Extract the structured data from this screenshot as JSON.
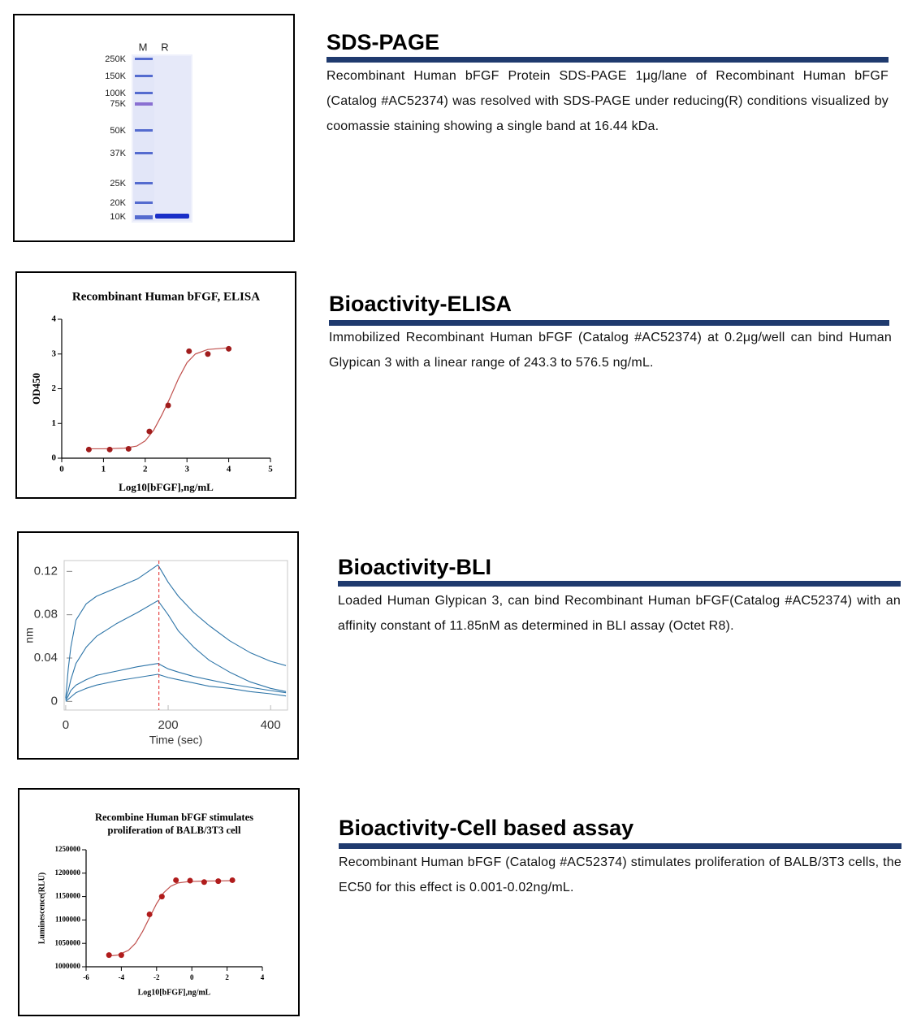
{
  "sections": [
    {
      "title": "SDS-PAGE",
      "description": "Recombinant Human bFGF Protein SDS-PAGE 1μg/lane of Recombinant Human bFGF (Catalog #AC52374) was resolved with SDS-PAGE under reducing(R) conditions visualized by coomassie staining showing a single band at 16.44 kDa.",
      "figure": {
        "type": "gel",
        "lanes": [
          "M",
          "R"
        ],
        "markers": [
          "250K",
          "150K",
          "100K",
          "75K",
          "50K",
          "37K",
          "25K",
          "20K",
          "10K"
        ]
      }
    },
    {
      "title": "Bioactivity-ELISA",
      "description": "Immobilized Recombinant Human bFGF (Catalog #AC52374) at 0.2μg/well can bind Human Glypican 3 with a linear range of 243.3 to 576.5 ng/mL.",
      "chart_data": {
        "type": "scatter",
        "title": [
          "Recombinant Human bFGF, ELISA"
        ],
        "x_label": "Log10[bFGF],ng/mL",
        "y_label": "OD450",
        "x": [
          0.65,
          1.15,
          1.6,
          2.1,
          2.55,
          3.05,
          3.5,
          4.0
        ],
        "values": [
          0.25,
          0.25,
          0.27,
          0.77,
          1.52,
          3.08,
          3.0,
          3.15
        ],
        "fit": {
          "x": [
            0.65,
            1.0,
            1.5,
            1.8,
            2.0,
            2.2,
            2.4,
            2.6,
            2.8,
            3.0,
            3.2,
            3.5,
            4.0
          ],
          "y": [
            0.27,
            0.27,
            0.29,
            0.35,
            0.5,
            0.8,
            1.25,
            1.75,
            2.3,
            2.75,
            3.0,
            3.13,
            3.18
          ]
        },
        "color": "#a01c1c",
        "fit_color": "#c0504d",
        "xlim": [
          0,
          5
        ],
        "xticks": [
          0,
          1,
          2,
          3,
          4,
          5
        ],
        "ylim": [
          0,
          4
        ],
        "yticks": [
          0,
          1,
          2,
          3,
          4
        ]
      }
    },
    {
      "title": "Bioactivity-BLI",
      "description": "Loaded Human Glypican 3, can bind Recombinant Human bFGF(Catalog #AC52374) with an affinity constant of 11.85nM as determined in BLI assay (Octet R8).",
      "chart_data": {
        "type": "line",
        "x_label": "Time (sec)",
        "y_label": "nm",
        "x": [
          0,
          5,
          10,
          20,
          40,
          60,
          100,
          140,
          180,
          200,
          220,
          250,
          280,
          320,
          360,
          400,
          430
        ],
        "series": [
          {
            "color": "#2e75a8",
            "values": [
              0.003,
              0.03,
              0.05,
              0.075,
              0.09,
              0.097,
              0.105,
              0.113,
              0.126,
              0.11,
              0.097,
              0.082,
              0.07,
              0.056,
              0.045,
              0.037,
              0.033
            ]
          },
          {
            "color": "#2e75a8",
            "values": [
              0.002,
              0.01,
              0.02,
              0.035,
              0.05,
              0.06,
              0.072,
              0.082,
              0.093,
              0.08,
              0.065,
              0.05,
              0.038,
              0.027,
              0.018,
              0.012,
              0.009
            ]
          },
          {
            "color": "#2e75a8",
            "values": [
              0.001,
              0.005,
              0.01,
              0.015,
              0.02,
              0.024,
              0.028,
              0.032,
              0.035,
              0.03,
              0.027,
              0.023,
              0.02,
              0.016,
              0.013,
              0.01,
              0.008
            ]
          },
          {
            "color": "#2e75a8",
            "values": [
              0,
              0.002,
              0.004,
              0.008,
              0.012,
              0.015,
              0.019,
              0.022,
              0.025,
              0.022,
              0.02,
              0.017,
              0.014,
              0.012,
              0.009,
              0.007,
              0.005
            ]
          }
        ],
        "dissociation_start": 182,
        "marker_color": "#e02020",
        "xlim": [
          -3,
          433
        ],
        "xticks": [
          0,
          200,
          400
        ],
        "ylim": [
          -0.008,
          0.13
        ],
        "yticks": [
          0,
          0.04,
          0.08,
          0.12
        ]
      }
    },
    {
      "title": "Bioactivity-Cell based assay",
      "description": "Recombinant Human bFGF (Catalog #AC52374) stimulates proliferation of BALB/3T3 cells, the EC50 for this effect is 0.001-0.02ng/mL.",
      "chart_data": {
        "type": "scatter",
        "title": [
          "Recombine Human bFGF stimulates",
          "proliferation of  BALB/3T3 cell"
        ],
        "x_label": "Log10[bFGF],ng/mL",
        "y_label": "Luminescence(RLU)",
        "x": [
          -4.7,
          -4.0,
          -2.4,
          -1.7,
          -0.9,
          -0.1,
          0.7,
          1.5,
          2.3
        ],
        "values": [
          1025000,
          1025000,
          1112000,
          1150000,
          1185000,
          1184000,
          1181000,
          1183000,
          1185000
        ],
        "fit": {
          "x": [
            -4.7,
            -4.2,
            -3.6,
            -3.2,
            -2.8,
            -2.4,
            -2.0,
            -1.6,
            -1.2,
            -0.8,
            -0.2,
            0.5,
            1.5,
            2.3
          ],
          "y": [
            1023000,
            1025000,
            1035000,
            1050000,
            1075000,
            1105000,
            1135000,
            1158000,
            1172000,
            1179000,
            1182000,
            1183000,
            1183500,
            1184000
          ]
        },
        "color": "#b01c1c",
        "fit_color": "#c0504d",
        "xlim": [
          -6,
          4
        ],
        "xticks": [
          -6,
          -4,
          -2,
          0,
          2,
          4
        ],
        "ylim": [
          1000000,
          1250000
        ],
        "yticks": [
          1000000,
          1050000,
          1100000,
          1150000,
          1200000,
          1250000
        ]
      }
    }
  ]
}
